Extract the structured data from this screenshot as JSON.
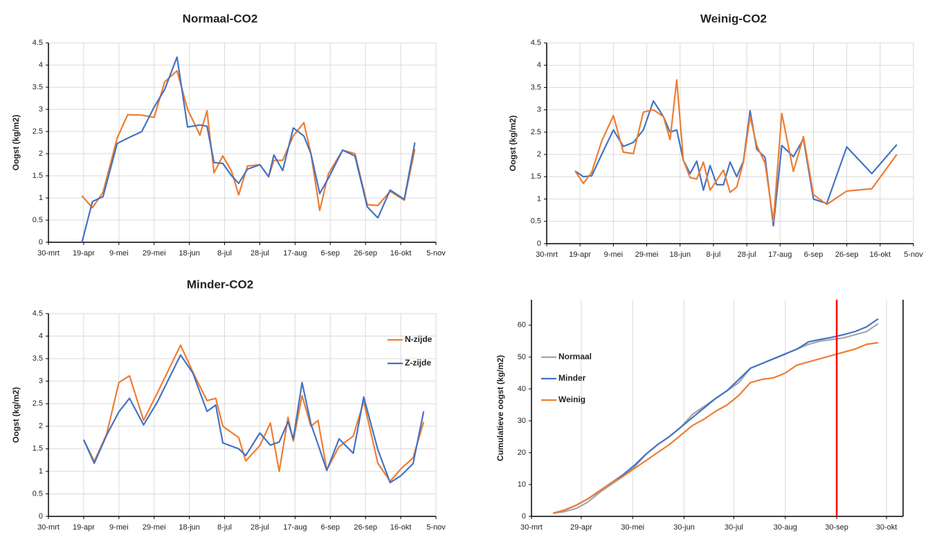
{
  "chart_data": [
    {
      "type": "line",
      "title": "Normaal-CO2",
      "y_label": "Oogst (kg/m2)",
      "grid": "both",
      "xlim": [
        0,
        220
      ],
      "ylim": [
        0,
        4.5
      ],
      "xticks": [
        {
          "value": 0,
          "label": "30-mrt"
        },
        {
          "value": 20,
          "label": "19-apr"
        },
        {
          "value": 40,
          "label": "9-mei"
        },
        {
          "value": 60,
          "label": "29-mei"
        },
        {
          "value": 80,
          "label": "18-jun"
        },
        {
          "value": 100,
          "label": "8-jul"
        },
        {
          "value": 120,
          "label": "28-jul"
        },
        {
          "value": 140,
          "label": "17-aug"
        },
        {
          "value": 160,
          "label": "6-sep"
        },
        {
          "value": 180,
          "label": "26-sep"
        },
        {
          "value": 200,
          "label": "16-okt"
        },
        {
          "value": 220,
          "label": "5-nov"
        }
      ],
      "yticks": [
        0,
        0.5,
        1,
        1.5,
        2,
        2.5,
        3,
        3.5,
        4,
        4.5
      ],
      "x": [
        19,
        25,
        31,
        39,
        45,
        53,
        60,
        66,
        73,
        79,
        86,
        90,
        94,
        99,
        104,
        108,
        113,
        120,
        125,
        128,
        133,
        139,
        145,
        149,
        154,
        159,
        167,
        174,
        181,
        187,
        194,
        202,
        208
      ],
      "series": [
        {
          "color": "#ed7d31",
          "values": [
            1.05,
            0.78,
            1.13,
            2.35,
            2.88,
            2.87,
            2.82,
            3.62,
            3.87,
            3.0,
            2.42,
            2.97,
            1.57,
            1.95,
            1.6,
            1.07,
            1.72,
            1.75,
            1.48,
            1.85,
            1.85,
            2.4,
            2.7,
            2.0,
            0.72,
            1.55,
            2.08,
            2.0,
            0.85,
            0.83,
            1.15,
            0.95,
            2.1
          ]
        },
        {
          "color": "#4472c4",
          "values": [
            0,
            0.92,
            1.03,
            2.23,
            2.35,
            2.5,
            3.05,
            3.45,
            4.18,
            2.6,
            2.65,
            2.62,
            1.8,
            1.78,
            1.5,
            1.33,
            1.65,
            1.75,
            1.48,
            1.97,
            1.62,
            2.58,
            2.4,
            2.0,
            1.1,
            1.45,
            2.08,
            1.95,
            0.8,
            0.55,
            1.18,
            0.97,
            2.25
          ]
        }
      ]
    },
    {
      "type": "line",
      "title": "Weinig-CO2",
      "y_label": "Oogst (kg/m2)",
      "grid": "both",
      "xlim": [
        0,
        220
      ],
      "ylim": [
        0,
        4.5
      ],
      "xticks": [
        {
          "value": 0,
          "label": "30-mrt"
        },
        {
          "value": 20,
          "label": "19-apr"
        },
        {
          "value": 40,
          "label": "9-mei"
        },
        {
          "value": 60,
          "label": "29-mei"
        },
        {
          "value": 80,
          "label": "18-jun"
        },
        {
          "value": 100,
          "label": "8-jul"
        },
        {
          "value": 120,
          "label": "28-jul"
        },
        {
          "value": 140,
          "label": "17-aug"
        },
        {
          "value": 160,
          "label": "6-sep"
        },
        {
          "value": 180,
          "label": "26-sep"
        },
        {
          "value": 200,
          "label": "16-okt"
        },
        {
          "value": 220,
          "label": "5-nov"
        }
      ],
      "yticks": [
        0,
        0.5,
        1,
        1.5,
        2,
        2.5,
        3,
        3.5,
        4,
        4.5
      ],
      "x": [
        17,
        22,
        27,
        33,
        40,
        46,
        52,
        58,
        64,
        70,
        74,
        78,
        82,
        86,
        90,
        94,
        98,
        102,
        106,
        110,
        114,
        118,
        122,
        126,
        131,
        136,
        141,
        148,
        154,
        160,
        168,
        180,
        195,
        210
      ],
      "series": [
        {
          "color": "#4472c4",
          "values": [
            1.63,
            1.5,
            1.52,
            2.0,
            2.55,
            2.18,
            2.27,
            2.55,
            3.2,
            2.85,
            2.5,
            2.55,
            1.87,
            1.57,
            1.85,
            1.2,
            1.75,
            1.32,
            1.32,
            1.83,
            1.5,
            1.85,
            2.98,
            2.12,
            1.93,
            0.4,
            2.2,
            1.95,
            2.35,
            1.0,
            0.9,
            2.17,
            1.57,
            2.22
          ]
        },
        {
          "color": "#ed7d31",
          "values": [
            1.63,
            1.35,
            1.6,
            2.3,
            2.87,
            2.05,
            2.02,
            2.95,
            3.0,
            2.85,
            2.33,
            3.67,
            1.87,
            1.48,
            1.45,
            1.83,
            1.2,
            1.42,
            1.65,
            1.15,
            1.27,
            1.83,
            2.85,
            2.2,
            1.8,
            0.5,
            2.92,
            1.62,
            2.4,
            1.1,
            0.88,
            1.18,
            1.23,
            2.0
          ]
        }
      ]
    },
    {
      "type": "line",
      "title": "Minder-CO2",
      "y_label": "Oogst (kg/m2)",
      "grid": "both",
      "legend": "upper right",
      "xlim": [
        0,
        220
      ],
      "ylim": [
        0,
        4.5
      ],
      "xticks": [
        {
          "value": 0,
          "label": "30-mrt"
        },
        {
          "value": 20,
          "label": "19-apr"
        },
        {
          "value": 40,
          "label": "9-mei"
        },
        {
          "value": 60,
          "label": "29-mei"
        },
        {
          "value": 80,
          "label": "18-jun"
        },
        {
          "value": 100,
          "label": "8-jul"
        },
        {
          "value": 120,
          "label": "28-jul"
        },
        {
          "value": 140,
          "label": "17-aug"
        },
        {
          "value": 160,
          "label": "6-sep"
        },
        {
          "value": 180,
          "label": "26-sep"
        },
        {
          "value": 200,
          "label": "16-okt"
        },
        {
          "value": 220,
          "label": "5-nov"
        }
      ],
      "yticks": [
        0,
        0.5,
        1,
        1.5,
        2,
        2.5,
        3,
        3.5,
        4,
        4.5
      ],
      "x": [
        20,
        26,
        33,
        40,
        46,
        54,
        62,
        75,
        82,
        90,
        95,
        99,
        108,
        112,
        120,
        126,
        131,
        136,
        139,
        144,
        149,
        153,
        158,
        165,
        173,
        179,
        187,
        194,
        200,
        207,
        213
      ],
      "series": [
        {
          "name": "N-zijde",
          "color": "#ed7d31",
          "values": [
            1.7,
            1.22,
            1.82,
            2.97,
            3.12,
            2.13,
            2.75,
            3.8,
            3.2,
            2.57,
            2.62,
            2.0,
            1.75,
            1.23,
            1.57,
            2.07,
            1.0,
            2.2,
            1.67,
            2.68,
            2.0,
            2.13,
            1.03,
            1.55,
            1.78,
            2.55,
            1.18,
            0.78,
            1.05,
            1.3,
            2.1
          ]
        },
        {
          "name": "Z-zijde",
          "color": "#4472c4",
          "values": [
            1.7,
            1.18,
            1.8,
            2.32,
            2.62,
            2.03,
            2.55,
            3.58,
            3.18,
            2.33,
            2.47,
            1.63,
            1.5,
            1.35,
            1.85,
            1.58,
            1.65,
            2.1,
            1.72,
            2.97,
            2.05,
            1.6,
            1.02,
            1.72,
            1.4,
            2.65,
            1.48,
            0.75,
            0.9,
            1.17,
            2.33
          ]
        }
      ]
    },
    {
      "type": "line",
      "y_label": "Cumulatieve oogst (kg/m2)",
      "grid": "x",
      "legend": "left",
      "xlim": [
        0,
        224
      ],
      "ylim": [
        0,
        68
      ],
      "xticks": [
        {
          "value": 0,
          "label": "30-mrt"
        },
        {
          "value": 30,
          "label": "29-apr"
        },
        {
          "value": 61,
          "label": "30-mei"
        },
        {
          "value": 92,
          "label": "30-jun"
        },
        {
          "value": 122,
          "label": "30-jul"
        },
        {
          "value": 153,
          "label": "30-aug"
        },
        {
          "value": 184,
          "label": "30-sep"
        },
        {
          "value": 214,
          "label": "30-okt"
        }
      ],
      "yticks": [
        0,
        10,
        20,
        30,
        40,
        50,
        60
      ],
      "vline": {
        "value": 184,
        "color": "#ff0000"
      },
      "x": [
        13,
        20,
        27,
        34,
        41,
        48,
        55,
        62,
        69,
        76,
        83,
        90,
        97,
        104,
        111,
        118,
        125,
        132,
        139,
        146,
        153,
        160,
        167,
        174,
        181,
        188,
        195,
        202,
        209
      ],
      "series": [
        {
          "name": "Normaal",
          "color": "#a5a5a5",
          "values": [
            1,
            1.5,
            2.5,
            4.5,
            7.5,
            10,
            12.5,
            15.5,
            19.5,
            22.5,
            25,
            28,
            32,
            34.5,
            37,
            39.5,
            42,
            46.5,
            48,
            49.5,
            51,
            52.5,
            54,
            55,
            55.5,
            56,
            57,
            58,
            60.5
          ]
        },
        {
          "name": "Minder",
          "color": "#4472c4",
          "values": [
            1,
            2,
            3.5,
            5.5,
            8,
            10.5,
            13,
            16,
            19.5,
            22.5,
            25,
            28,
            31,
            34,
            37,
            39.5,
            43,
            46.5,
            48,
            49.5,
            51,
            52.5,
            54.8,
            55.5,
            56.2,
            57,
            58,
            59.5,
            62
          ]
        },
        {
          "name": "Weinig",
          "color": "#ed7d31",
          "values": [
            1,
            2,
            3.5,
            5.5,
            8,
            10.5,
            12.5,
            15,
            17.5,
            20,
            22.5,
            25.5,
            28.5,
            30.5,
            33,
            35,
            38,
            42,
            43,
            43.5,
            45,
            47.5,
            48.5,
            49.5,
            50.5,
            51.5,
            52.5,
            54,
            54.5
          ]
        }
      ]
    }
  ]
}
